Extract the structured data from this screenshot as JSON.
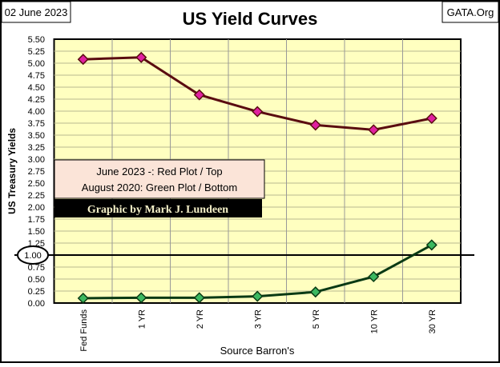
{
  "date_label": "02 June 2023",
  "source_site": "GATA.Org",
  "chart_data": {
    "type": "line",
    "title": "US Yield Curves",
    "xlabel": "Source Barron's",
    "ylabel": "US Treasury Yields",
    "ylim": [
      0,
      5.5
    ],
    "ytick_step": 0.25,
    "grid": true,
    "background": "#ffffc0",
    "categories": [
      "Fed Funds",
      "1 YR",
      "2 YR",
      "3 YR",
      "5 YR",
      "10 YR",
      "30 YR"
    ],
    "series": [
      {
        "color": "#5a0c10",
        "marker_color": "#e020a0",
        "values": [
          5.08,
          5.12,
          4.34,
          3.99,
          3.71,
          3.61,
          3.85
        ]
      },
      {
        "color": "#0a3a14",
        "marker_color": "#3cb860",
        "values": [
          0.1,
          0.11,
          0.11,
          0.14,
          0.23,
          0.55,
          1.21
        ]
      }
    ],
    "reference_line": {
      "value": 1.0,
      "label": "1.00"
    },
    "annotation": {
      "line1": "June 2023 -: Red Plot / Top",
      "line2": "August 2020: Green Plot / Bottom",
      "credit": "Graphic by Mark J. Lundeen"
    }
  }
}
